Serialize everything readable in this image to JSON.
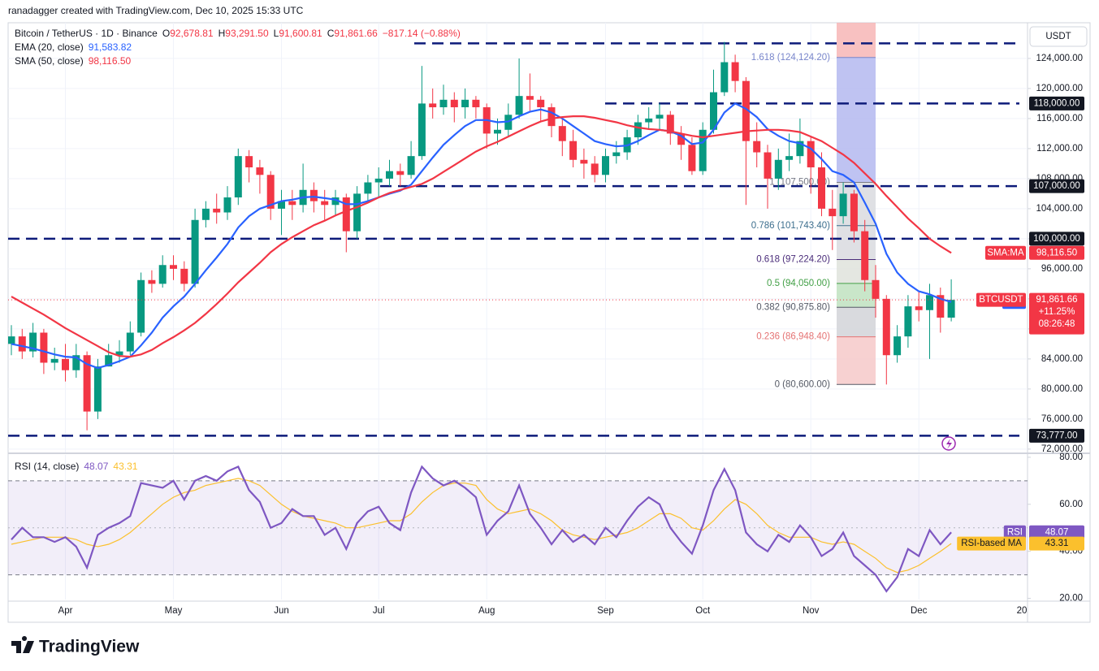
{
  "chart_data": {
    "type": "candlestick",
    "credit": "ranadagger created with TradingView.com, Dec 10, 2025 15:33 UTC",
    "title": "Bitcoin / TetherUS · 1D · Binance",
    "ohlc": [
      {
        "key": "O",
        "text": "92,678.81"
      },
      {
        "key": "H",
        "text": "93,291.50"
      },
      {
        "key": "L",
        "text": "91,600.81"
      },
      {
        "key": "C",
        "text": "91,861.66"
      }
    ],
    "change": "−817.14 (−0.88%)",
    "unit": "USDT",
    "brand": "TradingView",
    "up_color": "#089981",
    "down_color": "#f23645",
    "grid": true,
    "categories": [
      null,
      null,
      null,
      null,
      null,
      "Apr",
      null,
      null,
      null,
      null,
      null,
      null,
      null,
      null,
      null,
      "May",
      null,
      null,
      null,
      null,
      null,
      null,
      null,
      null,
      null,
      "Jun",
      null,
      null,
      null,
      null,
      null,
      null,
      null,
      null,
      "Jul",
      null,
      null,
      null,
      null,
      null,
      null,
      null,
      null,
      null,
      "Aug",
      null,
      null,
      null,
      null,
      null,
      null,
      null,
      null,
      null,
      null,
      "Sep",
      null,
      null,
      null,
      null,
      null,
      null,
      null,
      null,
      "Oct",
      null,
      null,
      null,
      null,
      null,
      null,
      null,
      null,
      null,
      "Nov",
      null,
      null,
      null,
      null,
      null,
      null,
      null,
      null,
      null,
      "Dec",
      null,
      null,
      null
    ],
    "x_edge_label": "20",
    "open": [
      86000,
      87000,
      85000,
      87500,
      83500,
      84000,
      82500,
      84500,
      77000,
      83000,
      84500,
      85000,
      87500,
      94500,
      94000,
      96500,
      96000,
      94000,
      102500,
      104000,
      103500,
      105500,
      111000,
      109500,
      108500,
      104000,
      105000,
      104500,
      106500,
      105000,
      104500,
      105500,
      101000,
      106000,
      107500,
      108000,
      109000,
      108500,
      111000,
      118000,
      117500,
      118500,
      117500,
      118500,
      117500,
      114000,
      114500,
      116500,
      119000,
      118500,
      117500,
      115000,
      113000,
      110500,
      110000,
      108500,
      111000,
      111500,
      113500,
      115500,
      116000,
      116500,
      114000,
      112500,
      109000,
      114500,
      119500,
      123500,
      121000,
      113000,
      111500,
      108000,
      110500,
      111000,
      113000,
      109500,
      104000,
      103000,
      106000,
      101000,
      94500,
      92000,
      84500,
      87000,
      91000,
      90500,
      92500,
      89500
    ],
    "high": [
      88500,
      88000,
      88800,
      88000,
      85500,
      86000,
      86000,
      85000,
      84000,
      86000,
      86500,
      89000,
      95500,
      95800,
      97800,
      97800,
      97000,
      104000,
      105000,
      106000,
      107000,
      112000,
      111800,
      110500,
      109000,
      106500,
      106500,
      110000,
      107500,
      106500,
      106500,
      106000,
      107000,
      108500,
      109500,
      110500,
      110000,
      113000,
      123000,
      120000,
      120500,
      119500,
      120000,
      119000,
      118000,
      116000,
      118000,
      124000,
      122000,
      119000,
      118000,
      116000,
      114500,
      112000,
      111000,
      112000,
      113000,
      114500,
      116500,
      117500,
      118000,
      117000,
      115000,
      113500,
      115500,
      122500,
      126200,
      124500,
      121500,
      115500,
      112500,
      112000,
      114000,
      116000,
      113500,
      111500,
      106500,
      107500,
      106500,
      102500,
      96500,
      92500,
      88500,
      92500,
      93000,
      94000,
      93500,
      94600
    ],
    "low": [
      84500,
      84000,
      84200,
      82000,
      82500,
      81000,
      81500,
      74500,
      76000,
      83000,
      83500,
      84500,
      87000,
      92800,
      93500,
      94500,
      93000,
      93500,
      101500,
      102000,
      102500,
      104500,
      107500,
      106000,
      102500,
      100500,
      102500,
      103500,
      103500,
      102500,
      103000,
      98200,
      100000,
      105000,
      105500,
      107000,
      107000,
      108000,
      110500,
      116000,
      116500,
      115500,
      116000,
      116000,
      112000,
      112500,
      113500,
      116000,
      117000,
      115500,
      113500,
      111000,
      109500,
      108000,
      107500,
      107500,
      110000,
      110500,
      112500,
      114500,
      114500,
      112500,
      110500,
      108500,
      108500,
      114000,
      119000,
      119500,
      104500,
      109500,
      104000,
      106500,
      109000,
      110000,
      106000,
      103000,
      98500,
      102000,
      99500,
      93000,
      89500,
      80600,
      83500,
      85500,
      89000,
      84000,
      87500,
      89000
    ],
    "close": [
      87000,
      85000,
      87500,
      83500,
      84000,
      82500,
      84500,
      77000,
      83000,
      84500,
      85000,
      87500,
      94500,
      94000,
      96500,
      96000,
      94000,
      102500,
      104000,
      103500,
      105500,
      111000,
      109500,
      108500,
      104000,
      105000,
      104500,
      106500,
      105000,
      104500,
      105500,
      101000,
      106000,
      107500,
      108000,
      109000,
      108500,
      111000,
      118000,
      117500,
      118500,
      117500,
      118500,
      117500,
      114000,
      114500,
      116500,
      119000,
      118500,
      117500,
      115000,
      113000,
      110500,
      110000,
      108500,
      111000,
      111500,
      113500,
      115500,
      116000,
      116500,
      114000,
      112500,
      109000,
      114500,
      119500,
      123500,
      121000,
      113000,
      111500,
      108000,
      110500,
      111000,
      113000,
      109500,
      104000,
      103000,
      106000,
      101000,
      94500,
      92000,
      84500,
      87000,
      91000,
      90500,
      92500,
      89500,
      91861.66
    ],
    "ylim": [
      71550,
      128750
    ],
    "yticks": [
      {
        "value": 72000,
        "label": "72,000.00"
      },
      {
        "value": 76000,
        "label": "76,000.00"
      },
      {
        "value": 80000,
        "label": "80,000.00"
      },
      {
        "value": 84000,
        "label": "84,000.00"
      },
      {
        "value": 88000,
        "label": "88,000.00"
      },
      {
        "value": 92000,
        "label": "92,000.00"
      },
      {
        "value": 96000,
        "label": "96,000.00"
      },
      {
        "value": 100000,
        "label": "100,000.00"
      },
      {
        "value": 104000,
        "label": "104,000.00"
      },
      {
        "value": 108000,
        "label": "108,000.00"
      },
      {
        "value": 112000,
        "label": "112,000.00"
      },
      {
        "value": 116000,
        "label": "116,000.00"
      },
      {
        "value": 120000,
        "label": "120,000.00"
      },
      {
        "value": 124000,
        "label": "124,000.00"
      }
    ],
    "overlays": [
      {
        "name": "EMA (20, close)",
        "short": "EMA",
        "color": "#2962ff",
        "last": {
          "value": 91583.82,
          "label": "91,583.82"
        },
        "values": [
          86000,
          85700,
          85400,
          85000,
          84600,
          84300,
          84200,
          83300,
          82800,
          83200,
          83700,
          84300,
          85800,
          87500,
          89500,
          91000,
          92300,
          94000,
          95800,
          97500,
          99300,
          101500,
          103000,
          104000,
          104500,
          105000,
          105200,
          105500,
          105600,
          105400,
          105200,
          104600,
          104600,
          105000,
          105500,
          106000,
          106400,
          107200,
          109000,
          110800,
          112500,
          113800,
          115000,
          115800,
          115800,
          115500,
          115600,
          116300,
          116900,
          117200,
          116800,
          116000,
          115000,
          114000,
          113000,
          112600,
          112300,
          112400,
          113000,
          113800,
          114500,
          114300,
          113700,
          112600,
          112800,
          114500,
          116800,
          118000,
          117300,
          116200,
          114600,
          113700,
          113000,
          112700,
          112000,
          110600,
          109000,
          108500,
          107500,
          104800,
          102000,
          98000,
          95500,
          94000,
          93000,
          92600,
          92000,
          91583.82
        ]
      },
      {
        "name": "SMA (50, close)",
        "short": "SMA:MA",
        "color": "#f23645",
        "last": {
          "value": 98116.5,
          "label": "98,116.50"
        },
        "values": [
          92300,
          91500,
          90700,
          89900,
          89000,
          88100,
          87300,
          86500,
          85700,
          84900,
          84400,
          84300,
          84600,
          85200,
          86100,
          86900,
          87800,
          88800,
          90000,
          91300,
          92700,
          94200,
          95500,
          96800,
          98200,
          99300,
          100200,
          101000,
          101800,
          102400,
          103100,
          103700,
          104200,
          104800,
          105500,
          106100,
          106500,
          106900,
          107300,
          108000,
          108900,
          109800,
          110700,
          111600,
          112300,
          112900,
          113600,
          114300,
          115000,
          115600,
          116000,
          116200,
          116300,
          116300,
          116100,
          115800,
          115500,
          115100,
          114800,
          114600,
          114500,
          114300,
          114000,
          113700,
          113500,
          113700,
          113900,
          114100,
          114300,
          114400,
          114500,
          114500,
          114400,
          114200,
          113600,
          113000,
          112100,
          111200,
          110100,
          108700,
          107300,
          105700,
          104200,
          102700,
          101400,
          100000,
          99000,
          98116.5
        ]
      }
    ],
    "last_price": {
      "symbol": "BTCUSDT",
      "value": 91861.66,
      "label": "91,861.66",
      "change": "+11.25%",
      "countdown": "08:26:48"
    },
    "levels": [
      126000,
      {
        "value": 118000,
        "label": "118,000.00"
      },
      {
        "value": 107000,
        "label": "107,000.00"
      },
      {
        "value": 100000,
        "label": "100,000.00"
      },
      {
        "value": 73777,
        "label": "73,777.00"
      }
    ],
    "level_color": "#0d1b7a",
    "fib": [
      {
        "value": 124124.2,
        "label": "1.618 (124,124.20)",
        "color": "#7986cb"
      },
      {
        "value": 107500,
        "label": "1 (107,500.00)",
        "color": "#787b86"
      },
      {
        "value": 101743.4,
        "label": "0.786 (101,743.40)",
        "color": "#3d6f8e"
      },
      {
        "value": 97224.2,
        "label": "0.618 (97,224.20)",
        "color": "#4a2c7a"
      },
      {
        "value": 94050,
        "label": "0.5 (94,050.00)",
        "color": "#43a047"
      },
      {
        "value": 90875.8,
        "label": "0.382 (90,875.80)",
        "color": "#555a66"
      },
      {
        "value": 86948.4,
        "label": "0.236 (86,948.40)",
        "color": "#e57373"
      },
      {
        "value": 80600,
        "label": "0 (80,600.00)",
        "color": "#555a66"
      }
    ],
    "rsi": {
      "title": "RSI (14, close)",
      "ylim": [
        19.5,
        81
      ],
      "yticks": [
        {
          "value": 20,
          "label": "20.00"
        },
        {
          "value": 40,
          "label": "40.00"
        },
        {
          "value": 60,
          "label": "60.00"
        },
        {
          "value": 80,
          "label": "80.00"
        }
      ],
      "band": [
        30,
        70
      ],
      "midline": 50,
      "series": [
        {
          "name": "RSI",
          "color": "#7e57c2",
          "last": {
            "value": 48.07,
            "label": "48.07"
          },
          "values": [
            45,
            50,
            46,
            46,
            44,
            46,
            42,
            33,
            47,
            50,
            52,
            55,
            69,
            68,
            67,
            70,
            62,
            70,
            72,
            70,
            74,
            76,
            66,
            61,
            50,
            52,
            58,
            55,
            55,
            47,
            50,
            41,
            52,
            57,
            59,
            52,
            49,
            65,
            76,
            71,
            68,
            70,
            67,
            63,
            47,
            53,
            57,
            68,
            56,
            50,
            43,
            49,
            44,
            47,
            43,
            50,
            46,
            53,
            59,
            63,
            60,
            50,
            44,
            39,
            51,
            66,
            75,
            66,
            48,
            43,
            40,
            47,
            44,
            51,
            46,
            38,
            41,
            48,
            38,
            34,
            30,
            23,
            29,
            41,
            38,
            49,
            43,
            48.07
          ]
        },
        {
          "name": "RSI-based MA",
          "color": "#fbc02d",
          "last": {
            "value": 43.31,
            "label": "43.31"
          },
          "values": [
            43,
            44,
            45,
            46,
            46,
            46,
            45,
            43,
            42,
            43,
            45,
            48,
            52,
            56,
            60,
            63,
            65,
            66,
            68,
            69,
            70,
            71,
            70,
            68,
            64,
            60,
            57,
            55,
            54,
            53,
            52,
            50,
            50,
            51,
            52,
            53,
            53,
            56,
            61,
            65,
            68,
            69,
            69,
            68,
            62,
            58,
            56,
            57,
            58,
            56,
            53,
            49,
            47,
            46,
            45,
            46,
            47,
            48,
            50,
            53,
            56,
            56,
            54,
            50,
            49,
            53,
            58,
            62,
            60,
            56,
            51,
            48,
            46,
            46,
            46,
            44,
            43,
            44,
            43,
            40,
            37,
            33,
            31,
            32,
            34,
            37,
            40,
            43.31
          ]
        }
      ]
    }
  }
}
